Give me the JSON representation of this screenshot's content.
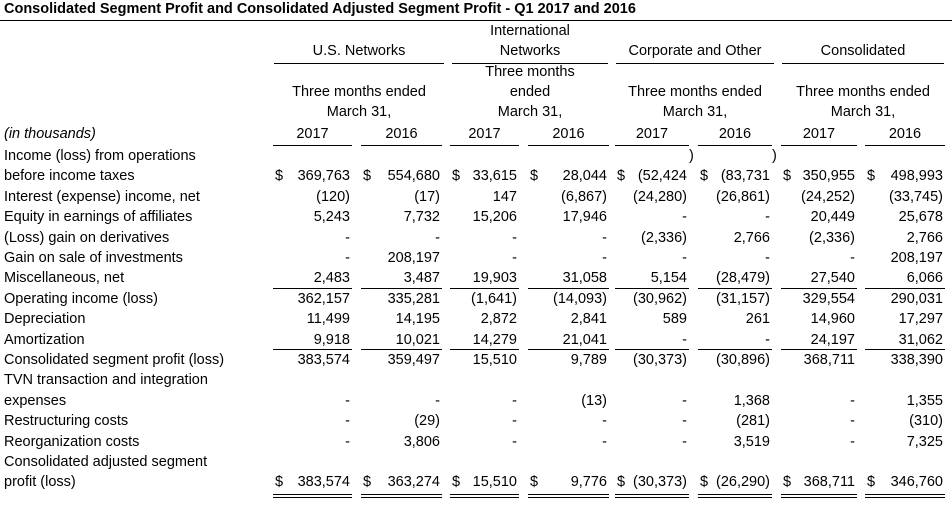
{
  "title": "Consolidated Segment Profit and Consolidated Adjusted Segment Profit - Q1 2017 and 2016",
  "units_label": "(in thousands)",
  "groups": [
    {
      "name_lines": [
        "U.S. Networks"
      ],
      "period_lines": [
        "Three months ended",
        "March 31,"
      ]
    },
    {
      "name_lines": [
        "International",
        "Networks"
      ],
      "period_lines": [
        "Three months",
        "ended",
        "March 31,"
      ]
    },
    {
      "name_lines": [
        "Corporate and Other"
      ],
      "period_lines": [
        "Three months ended",
        "March 31,"
      ]
    },
    {
      "name_lines": [
        "Consolidated"
      ],
      "period_lines": [
        "Three months ended",
        "March 31,"
      ]
    }
  ],
  "years": [
    "2017",
    "2016",
    "2017",
    "2016",
    "2017",
    "2016",
    "2017",
    "2016"
  ],
  "rows": [
    {
      "label_lines": [
        "Income (loss) from operations",
        "before income taxes"
      ],
      "cells": [
        {
          "cur": "$",
          "val": "369,763"
        },
        {
          "cur": "$",
          "val": "554,680"
        },
        {
          "cur": "$",
          "val": "33,615"
        },
        {
          "cur": "$",
          "val": "28,044"
        },
        {
          "cur": "$",
          "val": "(52,424"
        },
        {
          "cur": "$",
          "val": "(83,731"
        },
        {
          "cur": "$",
          "val": "350,955"
        },
        {
          "cur": "$",
          "val": "498,993"
        }
      ],
      "overflow": [
        ")",
        ")"
      ]
    },
    {
      "label_lines": [
        "Interest (expense) income, net"
      ],
      "cells": [
        {
          "val": "(120)"
        },
        {
          "val": "(17)"
        },
        {
          "val": "147"
        },
        {
          "val": "(6,867)"
        },
        {
          "val": "(24,280)"
        },
        {
          "val": "(26,861)"
        },
        {
          "val": "(24,252)"
        },
        {
          "val": "(33,745)"
        }
      ]
    },
    {
      "label_lines": [
        "Equity in earnings of affiliates"
      ],
      "cells": [
        {
          "val": "5,243"
        },
        {
          "val": "7,732"
        },
        {
          "val": "15,206"
        },
        {
          "val": "17,946"
        },
        {
          "val": "-"
        },
        {
          "val": "-"
        },
        {
          "val": "20,449"
        },
        {
          "val": "25,678"
        }
      ]
    },
    {
      "label_lines": [
        "(Loss) gain on derivatives"
      ],
      "cells": [
        {
          "val": "-"
        },
        {
          "val": "-"
        },
        {
          "val": "-"
        },
        {
          "val": "-"
        },
        {
          "val": "(2,336)"
        },
        {
          "val": "2,766"
        },
        {
          "val": "(2,336)"
        },
        {
          "val": "2,766"
        }
      ]
    },
    {
      "label_lines": [
        "Gain on sale of investments"
      ],
      "cells": [
        {
          "val": "-"
        },
        {
          "val": "208,197"
        },
        {
          "val": "-"
        },
        {
          "val": "-"
        },
        {
          "val": "-"
        },
        {
          "val": "-"
        },
        {
          "val": "-"
        },
        {
          "val": "208,197"
        }
      ]
    },
    {
      "label_lines": [
        "Miscellaneous, net"
      ],
      "cells": [
        {
          "val": "2,483"
        },
        {
          "val": "3,487"
        },
        {
          "val": "19,903"
        },
        {
          "val": "31,058"
        },
        {
          "val": "5,154"
        },
        {
          "val": "(28,479)"
        },
        {
          "val": "27,540"
        },
        {
          "val": "6,066"
        }
      ]
    },
    {
      "label_lines": [
        "Operating income (loss)"
      ],
      "cells": [
        {
          "val": "362,157"
        },
        {
          "val": "335,281"
        },
        {
          "val": "(1,641)"
        },
        {
          "val": "(14,093)"
        },
        {
          "val": "(30,962)"
        },
        {
          "val": "(31,157)"
        },
        {
          "val": "329,554"
        },
        {
          "val": "290,031"
        }
      ]
    },
    {
      "label_lines": [
        "Depreciation"
      ],
      "cells": [
        {
          "val": "11,499"
        },
        {
          "val": "14,195"
        },
        {
          "val": "2,872"
        },
        {
          "val": "2,841"
        },
        {
          "val": "589"
        },
        {
          "val": "261"
        },
        {
          "val": "14,960"
        },
        {
          "val": "17,297"
        }
      ]
    },
    {
      "label_lines": [
        "Amortization"
      ],
      "cells": [
        {
          "val": "9,918"
        },
        {
          "val": "10,021"
        },
        {
          "val": "14,279"
        },
        {
          "val": "21,041"
        },
        {
          "val": "-"
        },
        {
          "val": "-"
        },
        {
          "val": "24,197"
        },
        {
          "val": "31,062"
        }
      ]
    },
    {
      "label_lines": [
        "Consolidated segment profit (loss)"
      ],
      "cells": [
        {
          "val": "383,574"
        },
        {
          "val": "359,497"
        },
        {
          "val": "15,510"
        },
        {
          "val": "9,789"
        },
        {
          "val": "(30,373)"
        },
        {
          "val": "(30,896)"
        },
        {
          "val": "368,711"
        },
        {
          "val": "338,390"
        }
      ]
    },
    {
      "label_lines": [
        "TVN transaction and integration",
        "expenses"
      ],
      "cells": [
        {
          "val": "-"
        },
        {
          "val": "-"
        },
        {
          "val": "-"
        },
        {
          "val": "(13)"
        },
        {
          "val": "-"
        },
        {
          "val": "1,368"
        },
        {
          "val": "-"
        },
        {
          "val": "1,355"
        }
      ]
    },
    {
      "label_lines": [
        "Restructuring costs"
      ],
      "cells": [
        {
          "val": "-"
        },
        {
          "val": "(29)"
        },
        {
          "val": "-"
        },
        {
          "val": "-"
        },
        {
          "val": "-"
        },
        {
          "val": "(281)"
        },
        {
          "val": "-"
        },
        {
          "val": "(310)"
        }
      ]
    },
    {
      "label_lines": [
        "Reorganization costs"
      ],
      "cells": [
        {
          "val": "-"
        },
        {
          "val": "3,806"
        },
        {
          "val": "-"
        },
        {
          "val": "-"
        },
        {
          "val": "-"
        },
        {
          "val": "3,519"
        },
        {
          "val": "-"
        },
        {
          "val": "7,325"
        }
      ]
    },
    {
      "label_lines": [
        "Consolidated adjusted segment",
        "profit (loss)"
      ],
      "cells": [
        {
          "cur": "$",
          "val": "383,574"
        },
        {
          "cur": "$",
          "val": "363,274"
        },
        {
          "cur": "$",
          "val": "15,510"
        },
        {
          "cur": "$",
          "val": "9,776"
        },
        {
          "cur": "$",
          "val": "(30,373)"
        },
        {
          "cur": "$",
          "val": "(26,290)"
        },
        {
          "cur": "$",
          "val": "368,711"
        },
        {
          "cur": "$",
          "val": "346,760"
        }
      ]
    }
  ]
}
